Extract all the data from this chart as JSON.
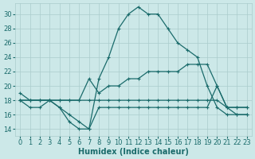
{
  "xlabel": "Humidex (Indice chaleur)",
  "bg_color": "#cce8e8",
  "grid_color": "#aacccc",
  "line_color": "#1a6b6b",
  "xlim": [
    -0.5,
    23.5
  ],
  "ylim": [
    13,
    31.5
  ],
  "yticks": [
    14,
    16,
    18,
    20,
    22,
    24,
    26,
    28,
    30
  ],
  "xticks": [
    0,
    1,
    2,
    3,
    4,
    5,
    6,
    7,
    8,
    9,
    10,
    11,
    12,
    13,
    14,
    15,
    16,
    17,
    18,
    19,
    20,
    21,
    22,
    23
  ],
  "series": [
    {
      "x": [
        0,
        1,
        2,
        3,
        4,
        5,
        6,
        7,
        8,
        9,
        10,
        11,
        12,
        13,
        14,
        15,
        16,
        17,
        18,
        19,
        20,
        21,
        22,
        23
      ],
      "y": [
        19,
        18,
        18,
        18,
        17,
        15,
        14,
        14,
        21,
        24,
        28,
        30,
        31,
        30,
        30,
        28,
        26,
        25,
        24,
        20,
        17,
        16,
        16,
        16
      ]
    },
    {
      "x": [
        0,
        1,
        2,
        3,
        4,
        5,
        6,
        7,
        8,
        9,
        10,
        11,
        12,
        13,
        14,
        15,
        16,
        17,
        18,
        19,
        20,
        21,
        22,
        23
      ],
      "y": [
        18,
        18,
        18,
        18,
        18,
        18,
        18,
        21,
        19,
        20,
        20,
        21,
        21,
        22,
        22,
        22,
        22,
        23,
        23,
        23,
        20,
        17,
        17,
        17
      ]
    },
    {
      "x": [
        0,
        1,
        2,
        3,
        4,
        5,
        6,
        7,
        8,
        9,
        10,
        11,
        12,
        13,
        14,
        15,
        16,
        17,
        18,
        19,
        20,
        21,
        22,
        23
      ],
      "y": [
        18,
        17,
        17,
        18,
        17,
        16,
        15,
        14,
        17,
        17,
        17,
        17,
        17,
        17,
        17,
        17,
        17,
        17,
        17,
        17,
        20,
        17,
        16,
        16
      ]
    },
    {
      "x": [
        0,
        1,
        2,
        3,
        4,
        5,
        6,
        7,
        8,
        9,
        10,
        11,
        12,
        13,
        14,
        15,
        16,
        17,
        18,
        19,
        20,
        21,
        22,
        23
      ],
      "y": [
        18,
        18,
        18,
        18,
        18,
        18,
        18,
        18,
        18,
        18,
        18,
        18,
        18,
        18,
        18,
        18,
        18,
        18,
        18,
        18,
        18,
        17,
        17,
        17
      ]
    }
  ]
}
